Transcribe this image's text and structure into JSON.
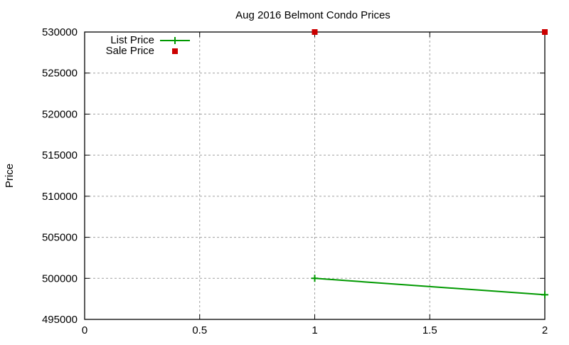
{
  "chart_data": {
    "type": "line",
    "title": "Aug 2016 Belmont Condo Prices",
    "xlabel": "",
    "ylabel": "Price",
    "xlim": [
      0,
      2
    ],
    "ylim": [
      495000,
      530000
    ],
    "x_ticks": [
      "0",
      "0.5",
      "1",
      "1.5",
      "2"
    ],
    "y_ticks": [
      "495000",
      "500000",
      "505000",
      "510000",
      "515000",
      "520000",
      "525000",
      "530000"
    ],
    "grid": true,
    "legend_position": "top-left",
    "series": [
      {
        "name": "List Price",
        "style": "line+cross",
        "color": "#009900",
        "x": [
          1,
          2
        ],
        "values": [
          500000,
          498000
        ]
      },
      {
        "name": "Sale Price",
        "style": "square-points",
        "color": "#cc0000",
        "x": [
          1,
          2
        ],
        "values": [
          530000,
          530000
        ]
      }
    ]
  }
}
